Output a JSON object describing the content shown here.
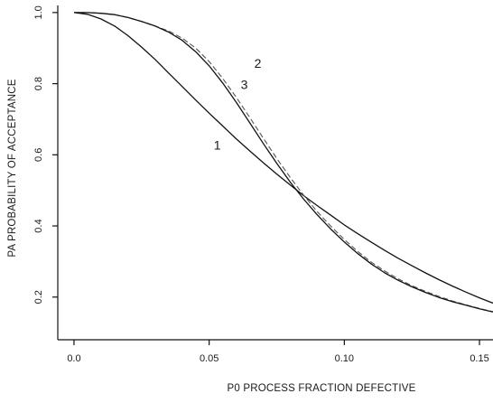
{
  "chart_data": {
    "type": "line",
    "title": "",
    "xlabel": "P0 PROCESS FRACTION DEFECTIVE",
    "ylabel": "PA PROBABILITY OF ACCEPTANCE",
    "xlim": [
      -0.006,
      0.155
    ],
    "ylim": [
      0.08,
      1.02
    ],
    "x_ticks": [
      0.0,
      0.05,
      0.1,
      0.15
    ],
    "x_tick_labels": [
      "0.0",
      "0.05",
      "0.10",
      "0.15"
    ],
    "y_ticks": [
      0.2,
      0.4,
      0.6,
      0.8,
      1.0
    ],
    "y_tick_labels": [
      "0.2",
      "0.4",
      "0.6",
      "0.8",
      "1.0"
    ],
    "grid": false,
    "legend": "none",
    "x": [
      0.0,
      0.005,
      0.01,
      0.015,
      0.02,
      0.025,
      0.03,
      0.035,
      0.04,
      0.045,
      0.05,
      0.055,
      0.06,
      0.065,
      0.07,
      0.075,
      0.08,
      0.085,
      0.09,
      0.095,
      0.1,
      0.105,
      0.11,
      0.115,
      0.12,
      0.125,
      0.13,
      0.135,
      0.14,
      0.145,
      0.15,
      0.155
    ],
    "series": [
      {
        "name": "1",
        "style": "solid",
        "color": "#111111",
        "values": [
          1.0,
          0.995,
          0.982,
          0.962,
          0.935,
          0.903,
          0.868,
          0.83,
          0.792,
          0.754,
          0.717,
          0.681,
          0.645,
          0.611,
          0.578,
          0.546,
          0.515,
          0.485,
          0.457,
          0.43,
          0.403,
          0.378,
          0.354,
          0.331,
          0.309,
          0.288,
          0.268,
          0.249,
          0.231,
          0.214,
          0.198,
          0.183
        ]
      },
      {
        "name": "2",
        "style": "dashed",
        "color": "#555555",
        "values": [
          1.0,
          1.0,
          0.998,
          0.994,
          0.986,
          0.975,
          0.962,
          0.948,
          0.928,
          0.9,
          0.862,
          0.815,
          0.762,
          0.705,
          0.647,
          0.59,
          0.536,
          0.486,
          0.44,
          0.399,
          0.362,
          0.328,
          0.298,
          0.273,
          0.251,
          0.232,
          0.216,
          0.202,
          0.189,
          0.178,
          0.168,
          0.159
        ]
      },
      {
        "name": "3",
        "style": "solid",
        "color": "#111111",
        "values": [
          1.0,
          1.0,
          0.998,
          0.994,
          0.986,
          0.975,
          0.962,
          0.945,
          0.922,
          0.89,
          0.85,
          0.802,
          0.748,
          0.69,
          0.632,
          0.576,
          0.523,
          0.475,
          0.431,
          0.391,
          0.355,
          0.322,
          0.293,
          0.268,
          0.247,
          0.229,
          0.213,
          0.199,
          0.187,
          0.177,
          0.167,
          0.158
        ]
      }
    ],
    "curve_labels": [
      {
        "text": "1",
        "x": 0.053,
        "y": 0.615
      },
      {
        "text": "2",
        "x": 0.068,
        "y": 0.845
      },
      {
        "text": "3",
        "x": 0.063,
        "y": 0.785
      }
    ]
  }
}
